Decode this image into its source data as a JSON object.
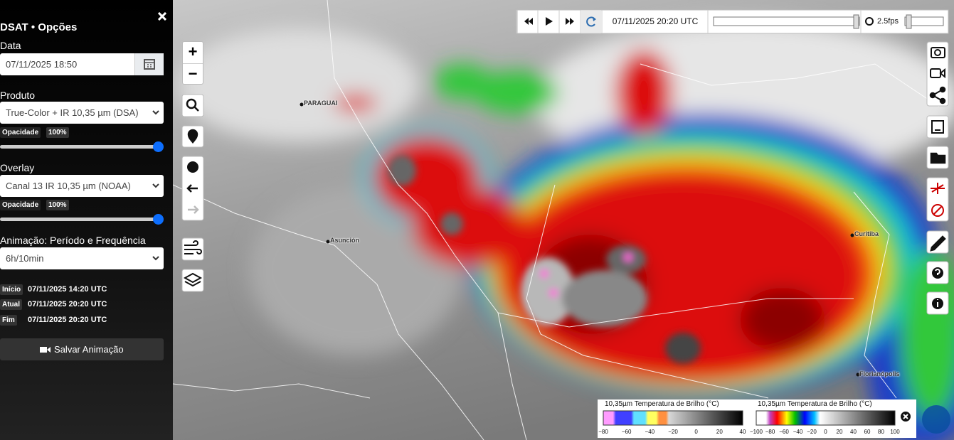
{
  "sidebar": {
    "title": "DSAT • Opções",
    "date_label": "Data",
    "date_value": "07/11/2025 18:50",
    "product_label": "Produto",
    "product_value": "True-Color + IR 10,35 µm (DSA)",
    "product_opacity_label": "Opacidade",
    "product_opacity_value": "100%",
    "overlay_label": "Overlay",
    "overlay_value": "Canal 13 IR 10,35 µm (NOAA)",
    "overlay_opacity_label": "Opacidade",
    "overlay_opacity_value": "100%",
    "animation_label": "Animação: Período e Frequência",
    "animation_value": "6h/10min",
    "times": [
      {
        "label": "Início",
        "value": "07/11/2025 14:20 UTC"
      },
      {
        "label": "Atual",
        "value": "07/11/2025 20:20 UTC"
      },
      {
        "label": "Fim",
        "value": "07/11/2025 20:20 UTC"
      }
    ],
    "save_button": "Salvar Animação"
  },
  "player": {
    "time": "07/11/2025 20:20 UTC",
    "fps": "2.5fps"
  },
  "map_controls": {
    "zoom_in": "+",
    "zoom_out": "−"
  },
  "map_labels": [
    "PARAGUAI",
    "Asunción",
    "Curitiba",
    "Florianópolis"
  ],
  "legends": [
    {
      "title": "10,35µm Temperatura de Brilho (°C)",
      "ticks": [
        "−80",
        "−60",
        "−40",
        "−20",
        "0",
        "20",
        "40"
      ]
    },
    {
      "title": "10,35µm Temperatura de Brilho (°C)",
      "ticks": [
        "−100",
        "−80",
        "−60",
        "−40",
        "−20",
        "0",
        "20",
        "40",
        "60",
        "80",
        "100"
      ]
    }
  ]
}
